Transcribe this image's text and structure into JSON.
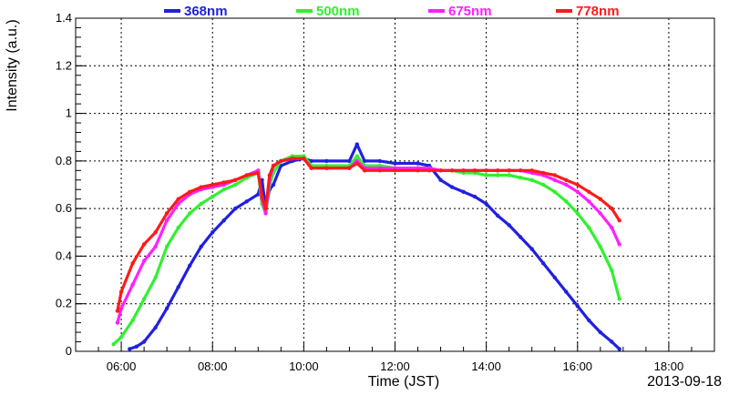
{
  "chart_data": {
    "type": "line",
    "xlabel": "Time (JST)",
    "ylabel": "Intensity (a.u.)",
    "date_label": "2013-09-18",
    "xlim": [
      "05:00",
      "19:00"
    ],
    "ylim": [
      0,
      1.4
    ],
    "x_ticks": [
      "06:00",
      "08:00",
      "10:00",
      "12:00",
      "14:00",
      "16:00",
      "18:00"
    ],
    "y_ticks": [
      "0",
      "0.2",
      "0.4",
      "0.6",
      "0.8",
      "1",
      "1.2",
      "1.4"
    ],
    "grid": true,
    "legend_position": "top",
    "series": [
      {
        "name": "368nm",
        "color": "#2020e0",
        "x": [
          "06:11",
          "06:20",
          "06:30",
          "06:45",
          "07:00",
          "07:15",
          "07:30",
          "07:45",
          "08:00",
          "08:15",
          "08:30",
          "08:45",
          "09:00",
          "09:05",
          "09:10",
          "09:15",
          "09:20",
          "09:30",
          "09:45",
          "10:00",
          "10:10",
          "10:30",
          "11:00",
          "11:10",
          "11:20",
          "11:40",
          "12:00",
          "12:30",
          "12:45",
          "13:00",
          "13:15",
          "13:30",
          "13:45",
          "14:00",
          "14:15",
          "14:30",
          "14:45",
          "15:00",
          "15:15",
          "15:30",
          "15:45",
          "16:00",
          "16:15",
          "16:30",
          "16:45",
          "16:55"
        ],
        "values": [
          0.01,
          0.02,
          0.04,
          0.1,
          0.18,
          0.27,
          0.36,
          0.44,
          0.5,
          0.55,
          0.6,
          0.63,
          0.66,
          0.72,
          0.6,
          0.68,
          0.7,
          0.78,
          0.8,
          0.81,
          0.8,
          0.8,
          0.8,
          0.87,
          0.8,
          0.8,
          0.79,
          0.79,
          0.78,
          0.72,
          0.69,
          0.67,
          0.65,
          0.62,
          0.57,
          0.53,
          0.48,
          0.43,
          0.37,
          0.31,
          0.25,
          0.19,
          0.13,
          0.08,
          0.04,
          0.01
        ]
      },
      {
        "name": "500nm",
        "color": "#30f030",
        "x": [
          "05:50",
          "06:00",
          "06:15",
          "06:30",
          "06:45",
          "07:00",
          "07:15",
          "07:30",
          "07:45",
          "08:00",
          "08:15",
          "08:30",
          "08:45",
          "09:00",
          "09:05",
          "09:10",
          "09:15",
          "09:20",
          "09:30",
          "09:45",
          "10:00",
          "10:10",
          "10:30",
          "11:00",
          "11:10",
          "11:20",
          "11:40",
          "12:00",
          "12:30",
          "12:45",
          "13:00",
          "13:15",
          "13:30",
          "13:45",
          "14:00",
          "14:15",
          "14:30",
          "14:45",
          "15:00",
          "15:15",
          "15:30",
          "15:45",
          "16:00",
          "16:15",
          "16:30",
          "16:45",
          "16:55"
        ],
        "values": [
          0.03,
          0.06,
          0.13,
          0.22,
          0.31,
          0.44,
          0.52,
          0.58,
          0.62,
          0.65,
          0.68,
          0.7,
          0.73,
          0.75,
          0.62,
          0.58,
          0.7,
          0.75,
          0.8,
          0.82,
          0.82,
          0.78,
          0.78,
          0.78,
          0.82,
          0.78,
          0.78,
          0.77,
          0.77,
          0.77,
          0.76,
          0.76,
          0.75,
          0.75,
          0.74,
          0.74,
          0.74,
          0.73,
          0.72,
          0.7,
          0.67,
          0.63,
          0.58,
          0.52,
          0.44,
          0.34,
          0.22
        ]
      },
      {
        "name": "675nm",
        "color": "#ff20ff",
        "x": [
          "05:55",
          "06:00",
          "06:15",
          "06:30",
          "06:45",
          "07:00",
          "07:15",
          "07:30",
          "07:45",
          "08:00",
          "08:15",
          "08:30",
          "08:45",
          "09:00",
          "09:05",
          "09:10",
          "09:15",
          "09:20",
          "09:30",
          "09:45",
          "10:00",
          "10:10",
          "10:30",
          "11:00",
          "11:10",
          "11:20",
          "11:40",
          "12:00",
          "12:30",
          "12:45",
          "13:00",
          "13:15",
          "13:30",
          "13:45",
          "14:00",
          "14:15",
          "14:30",
          "14:45",
          "15:00",
          "15:15",
          "15:30",
          "15:45",
          "16:00",
          "16:15",
          "16:30",
          "16:45",
          "16:55"
        ],
        "values": [
          0.12,
          0.18,
          0.28,
          0.38,
          0.44,
          0.55,
          0.62,
          0.66,
          0.68,
          0.69,
          0.7,
          0.72,
          0.74,
          0.76,
          0.64,
          0.58,
          0.72,
          0.78,
          0.8,
          0.81,
          0.81,
          0.77,
          0.77,
          0.77,
          0.8,
          0.77,
          0.77,
          0.77,
          0.77,
          0.77,
          0.76,
          0.76,
          0.76,
          0.76,
          0.76,
          0.76,
          0.76,
          0.76,
          0.75,
          0.74,
          0.72,
          0.7,
          0.67,
          0.63,
          0.58,
          0.52,
          0.45
        ]
      },
      {
        "name": "778nm",
        "color": "#ff1a1a",
        "x": [
          "05:55",
          "06:00",
          "06:15",
          "06:30",
          "06:45",
          "07:00",
          "07:15",
          "07:30",
          "07:45",
          "08:00",
          "08:15",
          "08:30",
          "08:45",
          "09:00",
          "09:05",
          "09:10",
          "09:15",
          "09:20",
          "09:30",
          "09:45",
          "10:00",
          "10:10",
          "10:30",
          "11:00",
          "11:10",
          "11:20",
          "11:40",
          "12:00",
          "12:30",
          "12:45",
          "13:00",
          "13:15",
          "13:30",
          "13:45",
          "14:00",
          "14:15",
          "14:30",
          "14:45",
          "15:00",
          "15:15",
          "15:30",
          "15:45",
          "16:00",
          "16:15",
          "16:30",
          "16:45",
          "16:55"
        ],
        "values": [
          0.17,
          0.25,
          0.37,
          0.45,
          0.5,
          0.58,
          0.64,
          0.67,
          0.69,
          0.7,
          0.71,
          0.72,
          0.74,
          0.75,
          0.65,
          0.6,
          0.74,
          0.78,
          0.8,
          0.81,
          0.81,
          0.77,
          0.77,
          0.77,
          0.79,
          0.76,
          0.76,
          0.76,
          0.76,
          0.76,
          0.76,
          0.76,
          0.76,
          0.76,
          0.76,
          0.76,
          0.76,
          0.76,
          0.76,
          0.75,
          0.74,
          0.72,
          0.7,
          0.67,
          0.64,
          0.6,
          0.55
        ]
      }
    ]
  }
}
